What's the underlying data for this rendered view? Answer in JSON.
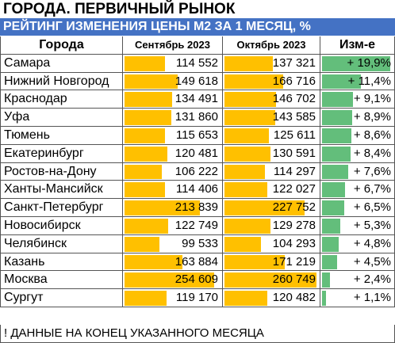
{
  "title": "ГОРОДА. ПЕРВИЧНЫЙ РЫНОК",
  "subtitle": "РЕЙТИНГ ИЗМЕНЕНИЯ ЦЕНЫ М2 ЗА 1 МЕСЯЦ, %",
  "footnote": "! ДАННЫЕ НА КОНЕЦ УКАЗАННОГО МЕСЯЦА",
  "colors": {
    "header_bg": "#4472c4",
    "price_bar": "#ffc000",
    "change_bar": "#63be7b"
  },
  "chart_data": {
    "type": "table",
    "columns": [
      "Города",
      "Сентябрь 2023",
      "Октябрь 2023",
      "Изм-е"
    ],
    "rows": [
      {
        "city": "Самара",
        "sep": 114552,
        "oct": 137321,
        "change": 19.9,
        "sep_label": "114 552",
        "oct_label": "137 321",
        "change_label": "+ 19,9%"
      },
      {
        "city": "Нижний Новгород",
        "sep": 149618,
        "oct": 166716,
        "change": 11.4,
        "sep_label": "149 618",
        "oct_label": "166 716",
        "change_label": "+ 11,4%"
      },
      {
        "city": "Краснодар",
        "sep": 134491,
        "oct": 146702,
        "change": 9.1,
        "sep_label": "134 491",
        "oct_label": "146 702",
        "change_label": "+ 9,1%"
      },
      {
        "city": "Уфа",
        "sep": 131860,
        "oct": 143585,
        "change": 8.9,
        "sep_label": "131 860",
        "oct_label": "143 585",
        "change_label": "+ 8,9%"
      },
      {
        "city": "Тюмень",
        "sep": 115653,
        "oct": 125611,
        "change": 8.6,
        "sep_label": "115 653",
        "oct_label": "125 611",
        "change_label": "+ 8,6%"
      },
      {
        "city": "Екатеринбург",
        "sep": 120481,
        "oct": 130591,
        "change": 8.4,
        "sep_label": "120 481",
        "oct_label": "130 591",
        "change_label": "+ 8,4%"
      },
      {
        "city": "Ростов-на-Дону",
        "sep": 106222,
        "oct": 114297,
        "change": 7.6,
        "sep_label": "106 222",
        "oct_label": "114 297",
        "change_label": "+ 7,6%"
      },
      {
        "city": "Ханты-Мансийск",
        "sep": 114406,
        "oct": 122027,
        "change": 6.7,
        "sep_label": "114 406",
        "oct_label": "122 027",
        "change_label": "+ 6,7%"
      },
      {
        "city": "Санкт-Петербург",
        "sep": 213839,
        "oct": 227752,
        "change": 6.5,
        "sep_label": "213 839",
        "oct_label": "227 752",
        "change_label": "+ 6,5%"
      },
      {
        "city": "Новосибирск",
        "sep": 122749,
        "oct": 129278,
        "change": 5.3,
        "sep_label": "122 749",
        "oct_label": "129 278",
        "change_label": "+ 5,3%"
      },
      {
        "city": "Челябинск",
        "sep": 99533,
        "oct": 104293,
        "change": 4.8,
        "sep_label": "99 533",
        "oct_label": "104 293",
        "change_label": "+ 4,8%"
      },
      {
        "city": "Казань",
        "sep": 163884,
        "oct": 171219,
        "change": 4.5,
        "sep_label": "163 884",
        "oct_label": "171 219",
        "change_label": "+ 4,5%"
      },
      {
        "city": "Москва",
        "sep": 254609,
        "oct": 260749,
        "change": 2.4,
        "sep_label": "254 609",
        "oct_label": "260 749",
        "change_label": "+ 2,4%"
      },
      {
        "city": "Сургут",
        "sep": 119170,
        "oct": 120482,
        "change": 1.1,
        "sep_label": "119 170",
        "oct_label": "120 482",
        "change_label": "+ 1,1%"
      }
    ]
  }
}
